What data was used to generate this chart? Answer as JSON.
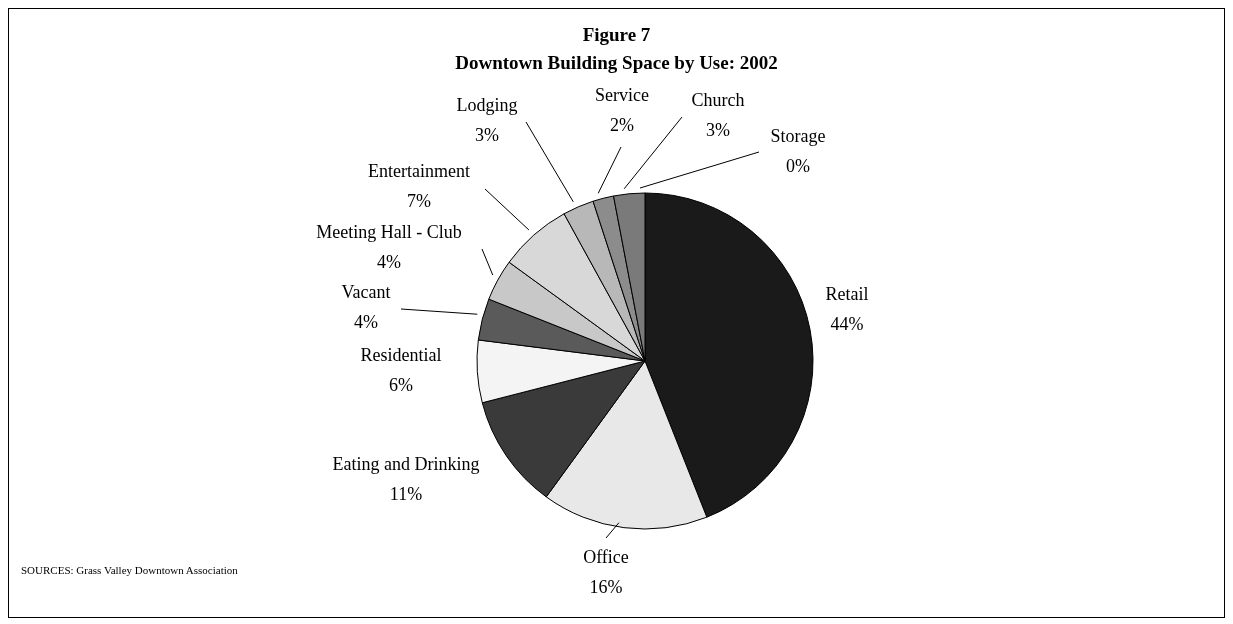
{
  "chart_data": {
    "type": "pie",
    "title": "Figure 7",
    "subtitle": "Downtown Building Space by Use:  2002",
    "categories": [
      "Retail",
      "Office",
      "Eating and Drinking",
      "Residential",
      "Vacant",
      "Meeting Hall - Club",
      "Entertainment",
      "Lodging",
      "Service",
      "Church",
      "Storage"
    ],
    "values": [
      44,
      16,
      11,
      6,
      4,
      4,
      7,
      3,
      2,
      3,
      0
    ],
    "value_labels": [
      "44%",
      "16%",
      "11%",
      "6%",
      "4%",
      "4%",
      "7%",
      "3%",
      "2%",
      "3%",
      "0%"
    ],
    "colors": [
      "#1a1a1a",
      "#e8e8e8",
      "#3a3a3a",
      "#f4f4f4",
      "#5a5a5a",
      "#c8c8c8",
      "#d8d8d8",
      "#b8b8b8",
      "#8c8c8c",
      "#7a7a7a",
      "#ffffff"
    ],
    "annotations": [
      "SOURCES: Grass Valley Downtown Association"
    ]
  }
}
